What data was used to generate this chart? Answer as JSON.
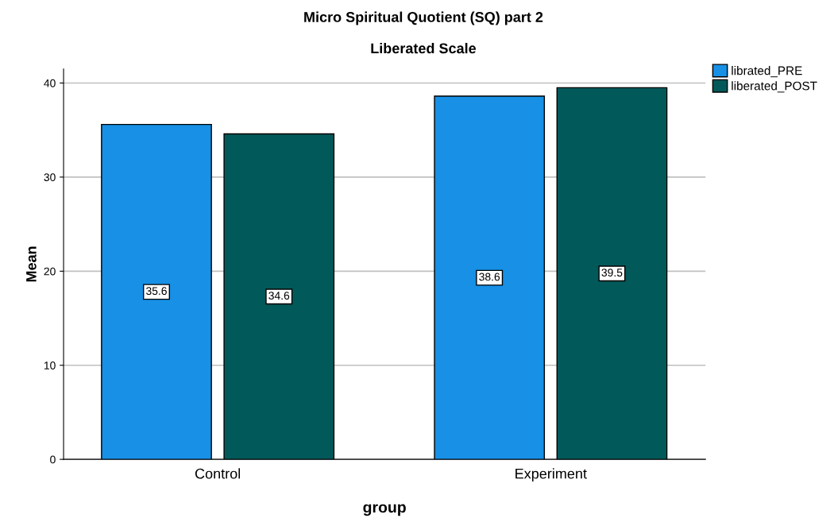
{
  "chart_data": {
    "type": "bar",
    "title": "Micro Spiritual Quotient (SQ) part 2",
    "subtitle": "Liberated Scale",
    "xlabel": "group",
    "ylabel": "Mean",
    "categories": [
      "Control",
      "Experiment"
    ],
    "series": [
      {
        "name": "librated_PRE",
        "color": "#1790e6",
        "values": [
          35.6,
          38.6
        ]
      },
      {
        "name": "liberated_POST",
        "color": "#02595a",
        "values": [
          34.6,
          39.5
        ]
      }
    ],
    "ylim": [
      0,
      41.5
    ],
    "yticks": [
      0,
      10,
      20,
      30,
      40
    ],
    "grid": "y",
    "legend": "top right",
    "data_labels": true
  }
}
